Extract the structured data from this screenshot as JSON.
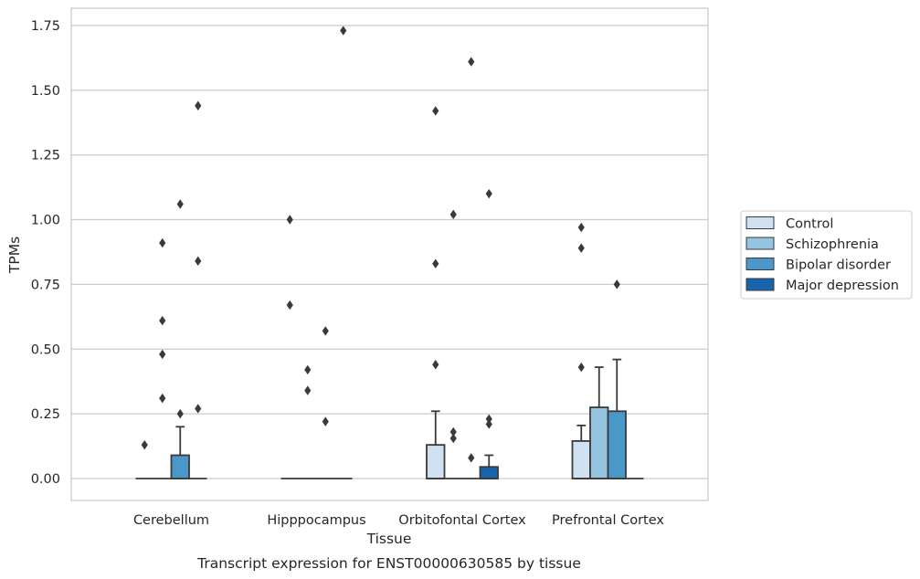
{
  "chart_data": {
    "type": "box",
    "title": "",
    "caption": "Transcript expression for ENST00000630585 by tissue",
    "xlabel": "Tissue",
    "ylabel": "TPMs",
    "ylim": [
      -0.085,
      1.815
    ],
    "yticks": [
      0.0,
      0.25,
      0.5,
      0.75,
      1.0,
      1.25,
      1.5,
      1.75
    ],
    "ytick_labels": [
      "0.00",
      "0.25",
      "0.50",
      "0.75",
      "1.00",
      "1.25",
      "1.50",
      "1.75"
    ],
    "grid": "horizontal",
    "legend_position": "right",
    "categories": [
      "Cerebellum",
      "Hipppocampus",
      "Orbitofontal Cortex",
      "Prefrontal Cortex"
    ],
    "series": [
      {
        "name": "Control",
        "color": "#d0e1f2",
        "boxes": [
          {
            "q1": 0,
            "median": 0,
            "q3": 0,
            "whisker_low": 0,
            "whisker_high": 0,
            "outliers": [
              0.13
            ]
          },
          {
            "q1": 0,
            "median": 0,
            "q3": 0,
            "whisker_low": 0,
            "whisker_high": 0,
            "outliers": [
              0.67,
              1.0
            ]
          },
          {
            "q1": 0,
            "median": 0,
            "q3": 0.13,
            "whisker_low": 0,
            "whisker_high": 0.26,
            "outliers": [
              0.44,
              0.83,
              1.42
            ]
          },
          {
            "q1": 0,
            "median": 0,
            "q3": 0.145,
            "whisker_low": 0,
            "whisker_high": 0.205,
            "outliers": [
              0.43,
              0.89,
              0.97
            ]
          }
        ]
      },
      {
        "name": "Schizophrenia",
        "color": "#94c4df",
        "boxes": [
          {
            "q1": 0,
            "median": 0,
            "q3": 0,
            "whisker_low": 0,
            "whisker_high": 0,
            "outliers": [
              0.31,
              0.48,
              0.61,
              0.91
            ]
          },
          {
            "q1": 0,
            "median": 0,
            "q3": 0,
            "whisker_low": 0,
            "whisker_high": 0,
            "outliers": [
              0.34,
              0.42
            ]
          },
          {
            "q1": 0,
            "median": 0,
            "q3": 0,
            "whisker_low": 0,
            "whisker_high": 0,
            "outliers": [
              0.155,
              0.18,
              1.02
            ]
          },
          {
            "q1": 0,
            "median": 0,
            "q3": 0.275,
            "whisker_low": 0,
            "whisker_high": 0.43,
            "outliers": []
          }
        ]
      },
      {
        "name": "Bipolar disorder",
        "color": "#4a98c9",
        "boxes": [
          {
            "q1": 0,
            "median": 0,
            "q3": 0.09,
            "whisker_low": 0,
            "whisker_high": 0.2,
            "outliers": [
              0.25,
              1.06
            ]
          },
          {
            "q1": 0,
            "median": 0,
            "q3": 0,
            "whisker_low": 0,
            "whisker_high": 0,
            "outliers": [
              0.22,
              0.57
            ]
          },
          {
            "q1": 0,
            "median": 0,
            "q3": 0,
            "whisker_low": 0,
            "whisker_high": 0,
            "outliers": [
              0.08,
              1.61
            ]
          },
          {
            "q1": 0,
            "median": 0,
            "q3": 0.26,
            "whisker_low": 0,
            "whisker_high": 0.46,
            "outliers": [
              0.75
            ]
          }
        ]
      },
      {
        "name": "Major depression",
        "color": "#1764ab",
        "boxes": [
          {
            "q1": 0,
            "median": 0,
            "q3": 0,
            "whisker_low": 0,
            "whisker_high": 0,
            "outliers": [
              0.27,
              0.84,
              1.44
            ]
          },
          {
            "q1": 0,
            "median": 0,
            "q3": 0,
            "whisker_low": 0,
            "whisker_high": 0,
            "outliers": [
              1.73
            ]
          },
          {
            "q1": 0,
            "median": 0,
            "q3": 0.045,
            "whisker_low": 0,
            "whisker_high": 0.09,
            "outliers": [
              0.21,
              0.23,
              1.1
            ]
          },
          {
            "q1": 0,
            "median": 0,
            "q3": 0,
            "whisker_low": 0,
            "whisker_high": 0,
            "outliers": []
          }
        ]
      }
    ]
  },
  "colors": {
    "grid": "#cccccc",
    "frame": "#cccccc",
    "line": "#3a3a3a",
    "outlier": "#3a3a3a",
    "background": "#ffffff"
  }
}
